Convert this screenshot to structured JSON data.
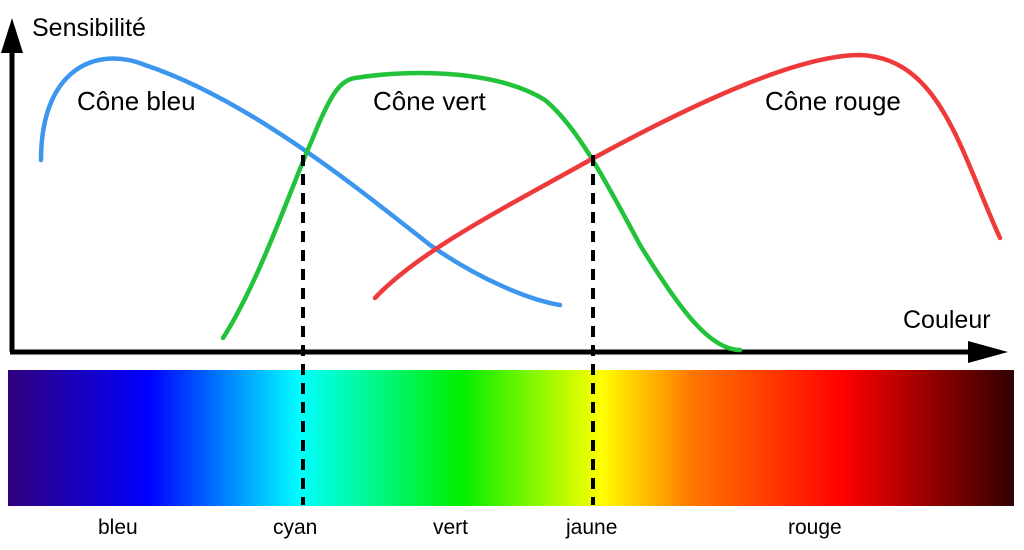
{
  "y_axis_label": "Sensibilité",
  "x_axis_label": "Couleur",
  "curves": [
    {
      "id": "blue",
      "label": "Cône bleu",
      "color": "#3c96ee"
    },
    {
      "id": "green",
      "label": "Cône vert",
      "color": "#22c33a"
    },
    {
      "id": "red",
      "label": "Cône rouge",
      "color": "#ee3a3a"
    }
  ],
  "spectrum_labels": [
    "bleu",
    "cyan",
    "vert",
    "jaune",
    "rouge"
  ],
  "spectrum_colors": [
    "#30007c",
    "#0000ff",
    "#00ffff",
    "#00ee00",
    "#ffff00",
    "#ff7700",
    "#ff0000",
    "#300000"
  ],
  "divider_labels": [
    "cyan",
    "jaune"
  ],
  "axis_color": "#000000"
}
